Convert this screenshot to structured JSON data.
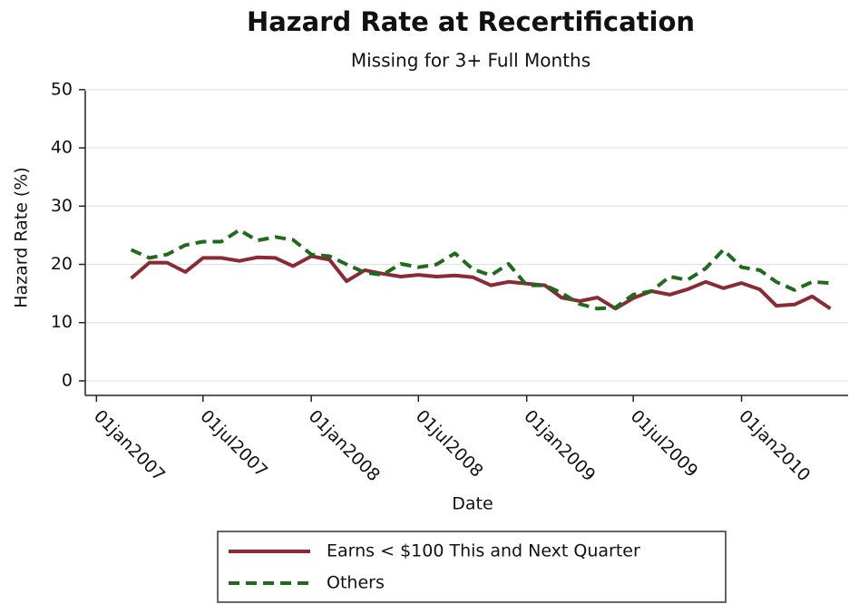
{
  "chart_data": {
    "type": "line",
    "title": "Hazard Rate at Recertification",
    "subtitle": "Missing for 3+ Full Months",
    "x_label": "Date",
    "y_label": "Hazard Rate (%)",
    "x": [
      "2007-03-01",
      "2007-04-01",
      "2007-05-01",
      "2007-06-01",
      "2007-07-01",
      "2007-08-01",
      "2007-09-01",
      "2007-10-01",
      "2007-11-01",
      "2007-12-01",
      "2008-01-01",
      "2008-02-01",
      "2008-03-01",
      "2008-04-01",
      "2008-05-01",
      "2008-06-01",
      "2008-07-01",
      "2008-08-01",
      "2008-09-01",
      "2008-10-01",
      "2008-11-01",
      "2008-12-01",
      "2009-01-01",
      "2009-02-01",
      "2009-03-01",
      "2009-04-01",
      "2009-05-01",
      "2009-06-01",
      "2009-07-01",
      "2009-08-01",
      "2009-09-01",
      "2009-10-01",
      "2009-11-01",
      "2009-12-01",
      "2010-01-01",
      "2010-02-01",
      "2010-03-01",
      "2010-04-01",
      "2010-05-01",
      "2010-06-01"
    ],
    "series": [
      {
        "name": "Earns < $100 This and Next Quarter",
        "color": "#8b2a35",
        "dash": "solid",
        "values": [
          17.6,
          20.3,
          20.3,
          18.7,
          21.1,
          21.1,
          20.6,
          21.2,
          21.1,
          19.7,
          21.4,
          20.8,
          17.1,
          19.0,
          18.4,
          17.9,
          18.2,
          17.9,
          18.1,
          17.8,
          16.4,
          17.0,
          16.7,
          16.4,
          14.3,
          13.7,
          14.3,
          12.4,
          14.2,
          15.4,
          14.8,
          15.7,
          17.0,
          15.9,
          16.8,
          15.7,
          12.9,
          13.1,
          14.5,
          12.4
        ]
      },
      {
        "name": "Others",
        "color": "#1e6b1e",
        "dash": "dashed",
        "values": [
          22.5,
          21.1,
          21.7,
          23.3,
          23.9,
          23.9,
          25.9,
          24.1,
          24.7,
          24.2,
          21.7,
          21.4,
          20.0,
          18.6,
          18.2,
          20.1,
          19.5,
          20.0,
          21.9,
          19.2,
          18.1,
          20.1,
          16.4,
          16.4,
          15.1,
          13.2,
          12.4,
          12.6,
          14.8,
          15.4,
          17.9,
          17.3,
          19.3,
          22.5,
          19.5,
          19.0,
          17.0,
          15.6,
          17.0,
          16.8
        ]
      }
    ],
    "xlim": [
      "2006-12-13",
      "2010-07-01"
    ],
    "xticks": [
      {
        "value": "2007-01-01",
        "label": "01jan2007"
      },
      {
        "value": "2007-07-01",
        "label": "01jul2007"
      },
      {
        "value": "2008-01-01",
        "label": "01jan2008"
      },
      {
        "value": "2008-07-01",
        "label": "01jul2008"
      },
      {
        "value": "2009-01-01",
        "label": "01jan2009"
      },
      {
        "value": "2009-07-01",
        "label": "01jul2009"
      },
      {
        "value": "2010-01-01",
        "label": "01jan2010"
      }
    ],
    "ylim": [
      -2.5,
      52
    ],
    "yticks": [
      0,
      10,
      20,
      30,
      40,
      50
    ],
    "grid": true,
    "legend": "bottom"
  }
}
